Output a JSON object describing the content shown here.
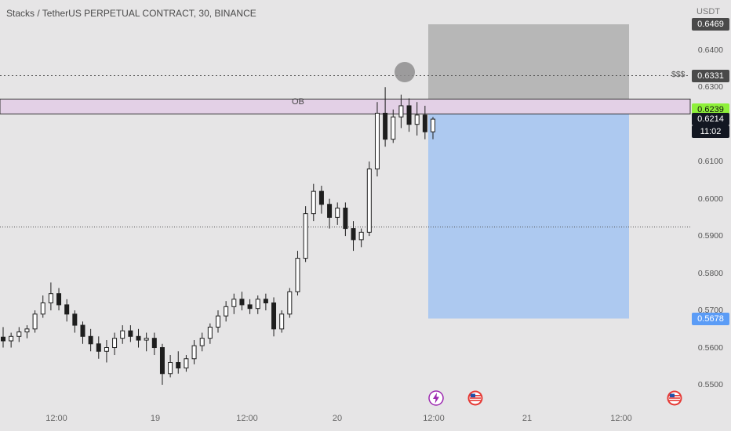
{
  "header": {
    "title": "Stacks / TetherUS PERPETUAL CONTRACT, 30, BINANCE",
    "unit": "USDT"
  },
  "annotations": {
    "ob_label": "OB",
    "liquidity_label": "$$$"
  },
  "price_tags": {
    "top_target": "0.6469",
    "liquidity": "0.6331",
    "entry": "0.6239",
    "current": "0.6214",
    "countdown": "11:02",
    "stop": "0.5678"
  },
  "colors": {
    "background": "#e6e5e6",
    "candle": "#1e1e1e",
    "stop_zone": "#b7b7b7",
    "target_zone": "#adc9f0",
    "ob_zone": "#e3d0e6",
    "entry_tag": "#8ef03a",
    "stop_tag": "#5b9cf6",
    "dark_tag": "#131722",
    "grey_tag": "#4a4a4a"
  },
  "event_icons": [
    "lightning-icon",
    "us-flag-icon",
    "us-flag-icon"
  ],
  "chart_data": {
    "type": "candlestick",
    "title": "Stacks / TetherUS PERPETUAL CONTRACT, 30, BINANCE",
    "y_axis_unit": "USDT",
    "y_ticks": [
      "0.6400",
      "0.6300",
      "0.6100",
      "0.6000",
      "0.5900",
      "0.5800",
      "0.5700",
      "0.5600",
      "0.5500"
    ],
    "x_ticks": [
      "12:00",
      "19",
      "12:00",
      "20",
      "12:00",
      "21",
      "12:00"
    ],
    "ylim": [
      0.546,
      0.6475
    ],
    "ohlc_sampled": [
      [
        0.5628,
        0.5655,
        0.56,
        0.5618
      ],
      [
        0.5618,
        0.564,
        0.56,
        0.563
      ],
      [
        0.563,
        0.5655,
        0.5615,
        0.5642
      ],
      [
        0.5642,
        0.566,
        0.5625,
        0.565
      ],
      [
        0.565,
        0.57,
        0.564,
        0.569
      ],
      [
        0.569,
        0.574,
        0.568,
        0.572
      ],
      [
        0.572,
        0.5775,
        0.57,
        0.5745
      ],
      [
        0.5745,
        0.576,
        0.57,
        0.5715
      ],
      [
        0.5715,
        0.573,
        0.567,
        0.569
      ],
      [
        0.569,
        0.57,
        0.564,
        0.566
      ],
      [
        0.566,
        0.567,
        0.561,
        0.563
      ],
      [
        0.563,
        0.565,
        0.559,
        0.561
      ],
      [
        0.561,
        0.563,
        0.557,
        0.559
      ],
      [
        0.559,
        0.562,
        0.556,
        0.56
      ],
      [
        0.56,
        0.564,
        0.558,
        0.5625
      ],
      [
        0.5625,
        0.566,
        0.561,
        0.5645
      ],
      [
        0.5645,
        0.566,
        0.5615,
        0.563
      ],
      [
        0.563,
        0.565,
        0.56,
        0.562
      ],
      [
        0.562,
        0.564,
        0.559,
        0.5625
      ],
      [
        0.5625,
        0.564,
        0.558,
        0.56
      ],
      [
        0.56,
        0.561,
        0.55,
        0.553
      ],
      [
        0.553,
        0.558,
        0.552,
        0.556
      ],
      [
        0.556,
        0.559,
        0.553,
        0.5545
      ],
      [
        0.5545,
        0.558,
        0.5535,
        0.557
      ],
      [
        0.557,
        0.562,
        0.5555,
        0.5605
      ],
      [
        0.5605,
        0.564,
        0.559,
        0.5625
      ],
      [
        0.5625,
        0.5665,
        0.561,
        0.5655
      ],
      [
        0.5655,
        0.57,
        0.564,
        0.5685
      ],
      [
        0.5685,
        0.5725,
        0.567,
        0.571
      ],
      [
        0.571,
        0.5745,
        0.569,
        0.573
      ],
      [
        0.573,
        0.575,
        0.57,
        0.5715
      ],
      [
        0.5715,
        0.573,
        0.569,
        0.5705
      ],
      [
        0.5705,
        0.574,
        0.569,
        0.573
      ],
      [
        0.573,
        0.5745,
        0.57,
        0.572
      ],
      [
        0.572,
        0.5735,
        0.563,
        0.565
      ],
      [
        0.565,
        0.57,
        0.564,
        0.569
      ],
      [
        0.569,
        0.576,
        0.568,
        0.575
      ],
      [
        0.575,
        0.586,
        0.574,
        0.584
      ],
      [
        0.584,
        0.598,
        0.583,
        0.596
      ],
      [
        0.596,
        0.604,
        0.594,
        0.602
      ],
      [
        0.602,
        0.6035,
        0.596,
        0.5985
      ],
      [
        0.5985,
        0.6,
        0.592,
        0.595
      ],
      [
        0.595,
        0.599,
        0.593,
        0.5975
      ],
      [
        0.5975,
        0.599,
        0.59,
        0.592
      ],
      [
        0.592,
        0.594,
        0.586,
        0.589
      ],
      [
        0.589,
        0.592,
        0.587,
        0.591
      ],
      [
        0.591,
        0.61,
        0.59,
        0.608
      ],
      [
        0.608,
        0.626,
        0.606,
        0.623
      ],
      [
        0.623,
        0.63,
        0.614,
        0.616
      ],
      [
        0.616,
        0.624,
        0.615,
        0.622
      ],
      [
        0.622,
        0.628,
        0.619,
        0.625
      ],
      [
        0.625,
        0.627,
        0.618,
        0.62
      ],
      [
        0.62,
        0.626,
        0.617,
        0.6225
      ],
      [
        0.6225,
        0.625,
        0.616,
        0.618
      ],
      [
        0.618,
        0.622,
        0.616,
        0.6214
      ]
    ],
    "horizontal_lines": [
      {
        "label": "$$$",
        "value": 0.6331,
        "style": "dotted"
      },
      {
        "value": 0.5924,
        "style": "dotted"
      }
    ],
    "zones": [
      {
        "label": "OB",
        "from": 0.6228,
        "to": 0.6268
      },
      {
        "from": 0.6239,
        "to": 0.6469
      },
      {
        "from": 0.5678,
        "to": 0.6239
      }
    ],
    "last_price": 0.6214
  }
}
